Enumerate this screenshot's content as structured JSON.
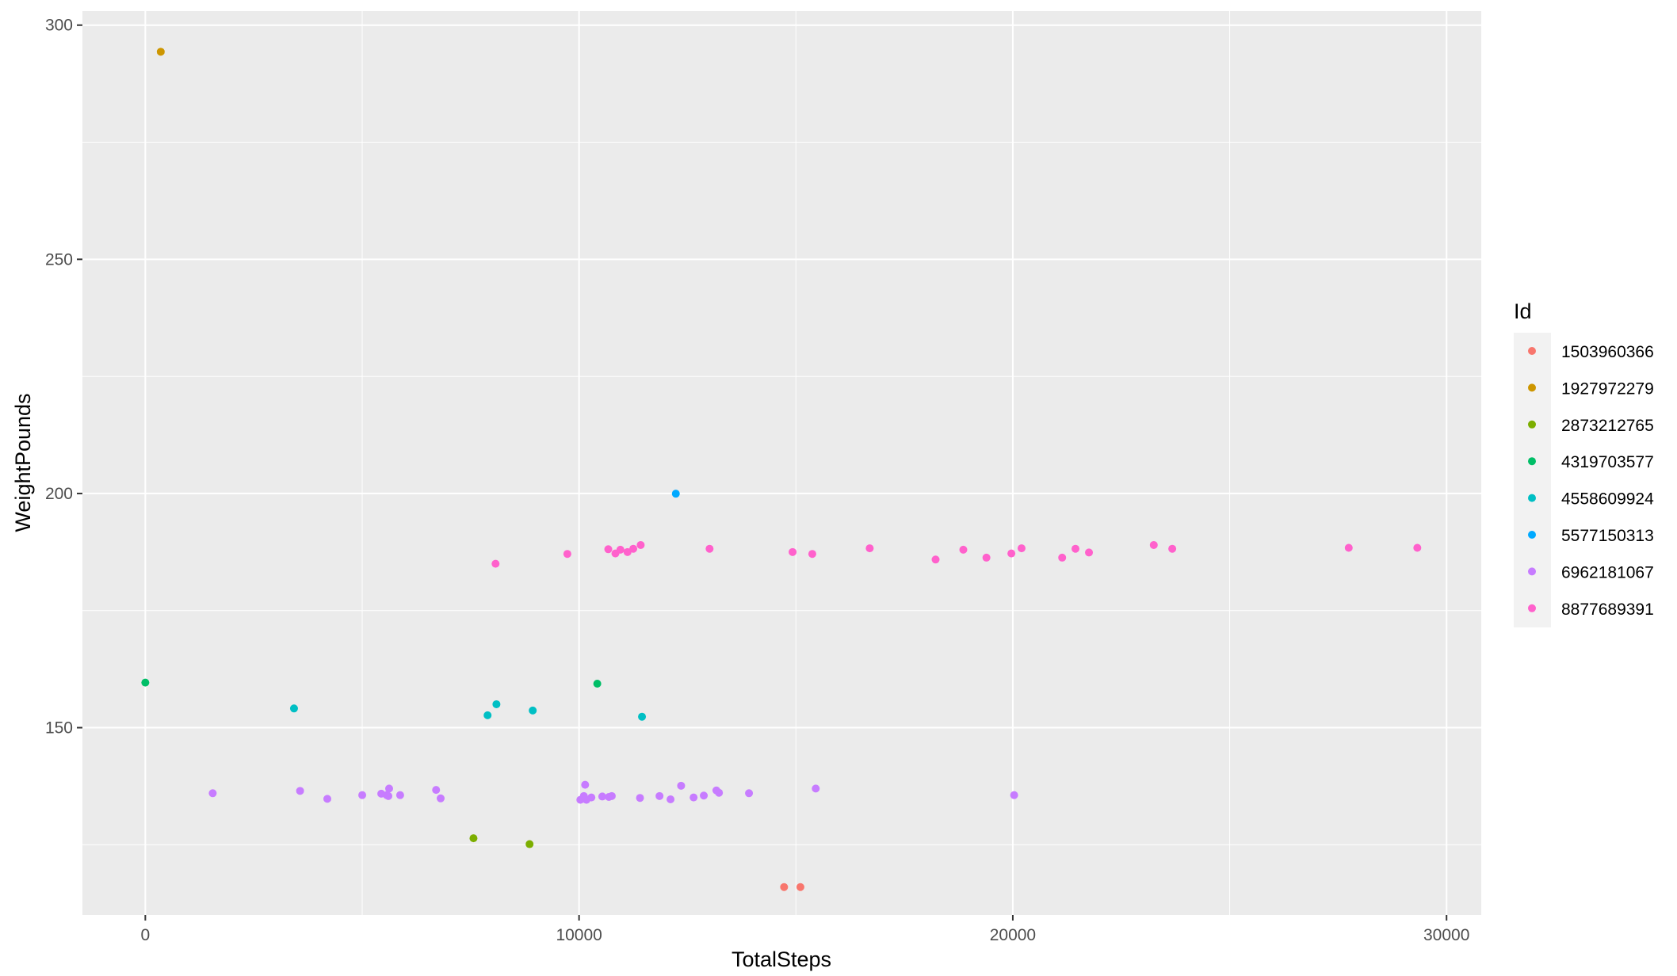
{
  "chart_data": {
    "type": "scatter",
    "title": "",
    "xlabel": "TotalSteps",
    "ylabel": "WeightPounds",
    "xlim": [
      -1450,
      30800
    ],
    "ylim": [
      110,
      303
    ],
    "x_ticks": [
      0,
      10000,
      20000,
      30000
    ],
    "x_tick_labels": [
      "0",
      "10000",
      "20000",
      "30000"
    ],
    "y_ticks": [
      150,
      200,
      250,
      300
    ],
    "y_tick_labels": [
      "150",
      "200",
      "250",
      "300"
    ],
    "grid": true,
    "legend_title": "Id",
    "legend_position": "right",
    "series": [
      {
        "name": "1503960366",
        "color": "#F8766D",
        "x": [
          14727,
          15103
        ],
        "y": [
          115.96,
          115.96
        ]
      },
      {
        "name": "1927972279",
        "color": "#CD9600",
        "x": [
          356
        ],
        "y": [
          294.32
        ]
      },
      {
        "name": "2873212765",
        "color": "#7CAE00",
        "x": [
          7566,
          8859
        ],
        "y": [
          126.39,
          125.13
        ]
      },
      {
        "name": "4319703577",
        "color": "#00BE67",
        "x": [
          0,
          10420
        ],
        "y": [
          159.62,
          159.39
        ]
      },
      {
        "name": "4558609924",
        "color": "#00BFC4",
        "x": [
          3428,
          7891,
          8095,
          8932,
          11451
        ],
        "y": [
          154.1,
          152.65,
          155.0,
          153.66,
          152.34
        ]
      },
      {
        "name": "5577150313",
        "color": "#00A9FF",
        "x": [
          12231
        ],
        "y": [
          199.96
        ]
      },
      {
        "name": "6962181067",
        "color": "#C77CFF",
        "x": [
          1554,
          3568,
          4196,
          5001,
          5440,
          5565,
          5603,
          5621,
          5875,
          6704,
          6809,
          10030,
          10110,
          10140,
          10170,
          10284,
          10535,
          10687,
          10754,
          11405,
          11855,
          12109,
          12353,
          12641,
          12876,
          13166,
          13226,
          13918,
          15457,
          20031
        ],
        "y": [
          136.0,
          136.5,
          134.8,
          135.6,
          135.9,
          135.6,
          135.4,
          137.0,
          135.6,
          136.7,
          134.9,
          134.6,
          135.4,
          137.8,
          134.6,
          135.1,
          135.3,
          135.2,
          135.4,
          135.0,
          135.4,
          134.7,
          137.6,
          135.1,
          135.5,
          136.6,
          136.1,
          136.0,
          137.0,
          135.6
        ]
      },
      {
        "name": "8877689391",
        "color": "#FF61CC",
        "x": [
          8075,
          9730,
          10674,
          10838,
          10953,
          11117,
          11250,
          11421,
          13009,
          14923,
          15377,
          16701,
          18220,
          18859,
          19392,
          19967,
          20202,
          21138,
          21445,
          21756,
          23250,
          23676,
          27745,
          29326
        ],
        "y": [
          185.0,
          187.1,
          188.1,
          187.2,
          188.0,
          187.5,
          188.2,
          189.0,
          188.2,
          187.5,
          187.1,
          188.3,
          185.9,
          188.0,
          186.3,
          187.2,
          188.3,
          186.3,
          188.2,
          187.4,
          189.0,
          188.2,
          188.4,
          188.4
        ]
      }
    ]
  }
}
